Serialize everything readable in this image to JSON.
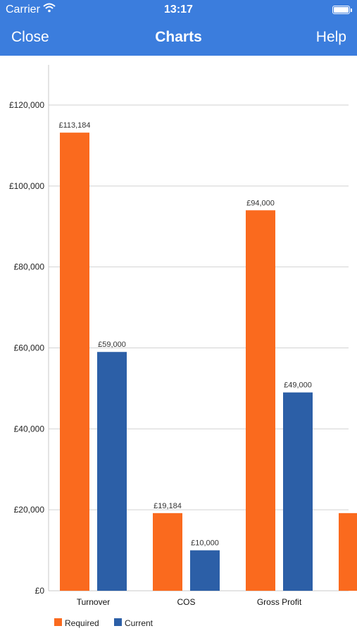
{
  "status_bar": {
    "carrier": "Carrier",
    "time": "13:17"
  },
  "nav": {
    "left_label": "Close",
    "title": "Charts",
    "right_label": "Help"
  },
  "chart_data": {
    "type": "bar",
    "categories": [
      "Turnover",
      "COS",
      "Gross Profit",
      ""
    ],
    "series": [
      {
        "name": "Required",
        "values": [
          113184,
          19184,
          94000,
          19184
        ],
        "labels": [
          "£113,184",
          "£19,184",
          "£94,000",
          ""
        ],
        "color": "#fa6a1e"
      },
      {
        "name": "Current",
        "values": [
          59000,
          10000,
          49000,
          null
        ],
        "labels": [
          "£59,000",
          "£10,000",
          "£49,000",
          ""
        ],
        "color": "#2c5fa7"
      }
    ],
    "y_ticks": [
      0,
      20000,
      40000,
      60000,
      80000,
      100000,
      120000
    ],
    "y_tick_labels": [
      "£0",
      "£20,000",
      "£40,000",
      "£60,000",
      "£80,000",
      "£100,000",
      "£120,000"
    ],
    "ylim": [
      0,
      130000
    ],
    "grid": true,
    "legend": "bottom-left"
  }
}
